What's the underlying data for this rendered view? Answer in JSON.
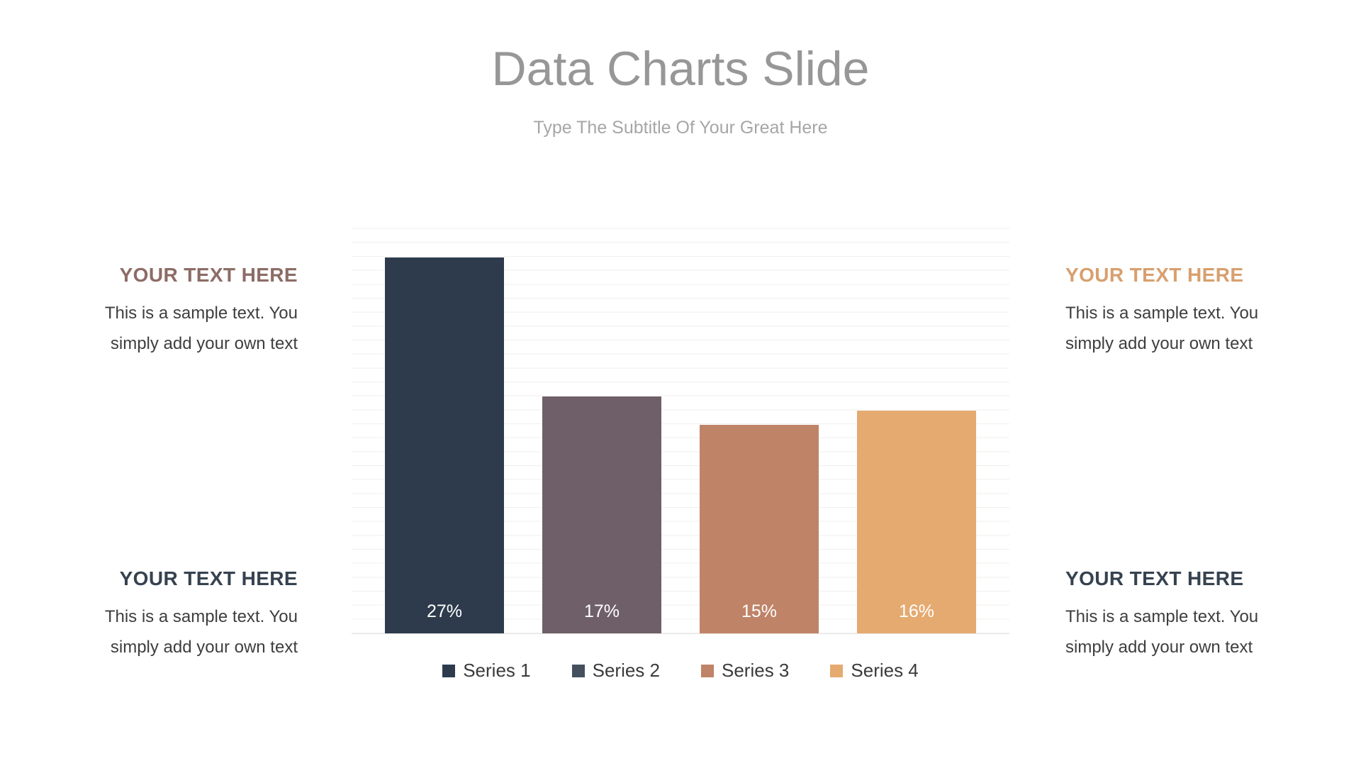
{
  "slide": {
    "title": "Data Charts Slide",
    "subtitle": "Type The Subtitle Of Your Great Here"
  },
  "colors": {
    "title": "#979797",
    "subtitle": "#a6a6a6",
    "heading_top_left": "#8d6c66",
    "heading_top_right": "#d89f6e",
    "heading_bottom_left": "#36424f",
    "heading_bottom_right": "#36424f"
  },
  "text_blocks": {
    "top_left": {
      "heading": "YOUR TEXT HERE",
      "body": "This is a sample text. You simply add your own text"
    },
    "top_right": {
      "heading": "YOUR TEXT HERE",
      "body": "This is a sample text. You simply add your own text"
    },
    "bottom_left": {
      "heading": "YOUR TEXT HERE",
      "body": "This is a sample text. You simply add your own text"
    },
    "bottom_right": {
      "heading": "YOUR TEXT HERE",
      "body": "This is a sample text. You simply add your own text"
    }
  },
  "chart_data": {
    "type": "bar",
    "categories": [
      "Series 1",
      "Series 2",
      "Series 3",
      "Series 4"
    ],
    "values": [
      27,
      17,
      15,
      16
    ],
    "data_labels": [
      "27%",
      "17%",
      "15%",
      "16%"
    ],
    "bar_colors": [
      "#2d3b4d",
      "#6f5f68",
      "#bf8368",
      "#e5aa70"
    ],
    "title": "",
    "xlabel": "",
    "ylabel": "",
    "ylim": [
      0,
      30
    ],
    "grid": true,
    "legend_position": "bottom",
    "legend": [
      {
        "label": "Series 1",
        "color": "#2d3b4d"
      },
      {
        "label": "Series 2",
        "color": "#44505e"
      },
      {
        "label": "Series 3",
        "color": "#bf8368"
      },
      {
        "label": "Series 4",
        "color": "#e5aa70"
      }
    ]
  }
}
